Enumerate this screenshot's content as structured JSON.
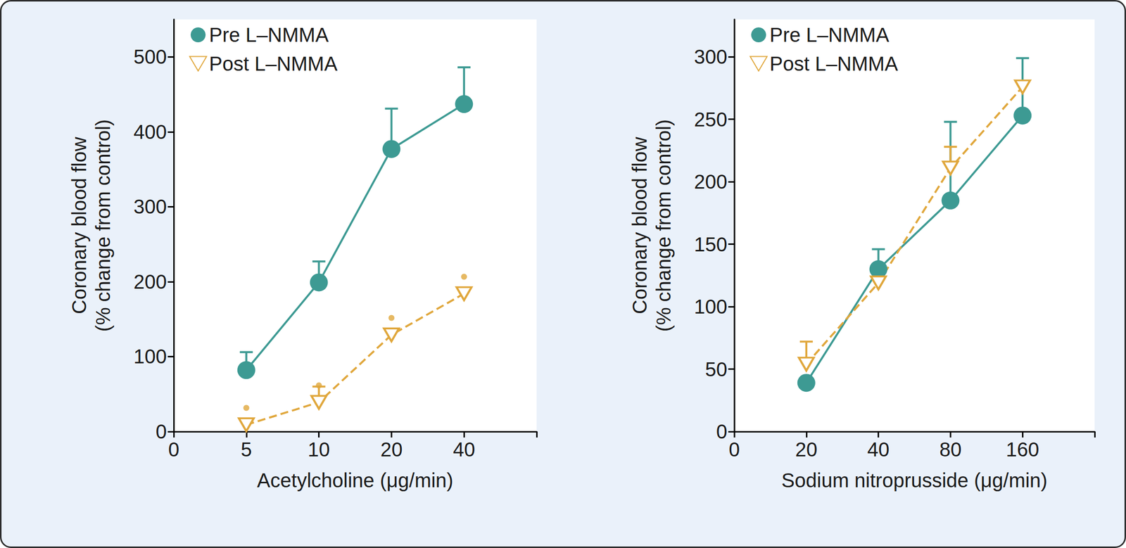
{
  "chart_data": [
    {
      "type": "line",
      "xlabel": "Acetylcholine (μg/min)",
      "ylabel": "Coronary blood flow\n(% change from control)",
      "categories": [
        "0",
        "5",
        "10",
        "20",
        "40",
        null
      ],
      "ylim": [
        0,
        550
      ],
      "yticks": [
        0,
        100,
        200,
        300,
        400,
        500
      ],
      "grid": false,
      "legend": "upper left",
      "series": [
        {
          "name": "Pre L–NMMA",
          "color": "#3d9a93",
          "marker": "circle",
          "line_style": "solid",
          "values": [
            null,
            82,
            199,
            377,
            437,
            null
          ],
          "errors": [
            null,
            24,
            28,
            54,
            49,
            null
          ]
        },
        {
          "name": "Post L–NMMA",
          "color": "#e0a73c",
          "marker": "triangle-down",
          "line_style": "dashed",
          "values": [
            null,
            9,
            39,
            129,
            184,
            null
          ],
          "errors": [
            null,
            null,
            21,
            null,
            null,
            null
          ],
          "significant": [
            null,
            true,
            true,
            true,
            true,
            null
          ]
        }
      ]
    },
    {
      "type": "line",
      "xlabel": "Sodium nitroprusside (μg/min)",
      "ylabel": "Coronary blood flow\n(% change from control)",
      "categories": [
        "0",
        "20",
        "40",
        "80",
        "160",
        null
      ],
      "ylim": [
        0,
        330
      ],
      "yticks": [
        0,
        50,
        100,
        150,
        200,
        250,
        300
      ],
      "grid": false,
      "legend": "upper left",
      "series": [
        {
          "name": "Pre L–NMMA",
          "color": "#3d9a93",
          "marker": "circle",
          "line_style": "solid",
          "values": [
            null,
            39,
            130,
            185,
            253,
            null
          ],
          "errors": [
            null,
            null,
            16,
            63,
            46,
            null
          ]
        },
        {
          "name": "Post L–NMMA",
          "color": "#e0a73c",
          "marker": "triangle-down",
          "line_style": "dashed",
          "values": [
            null,
            54,
            119,
            211,
            276,
            null
          ],
          "errors": [
            null,
            18,
            null,
            17,
            null,
            null
          ]
        }
      ]
    }
  ]
}
